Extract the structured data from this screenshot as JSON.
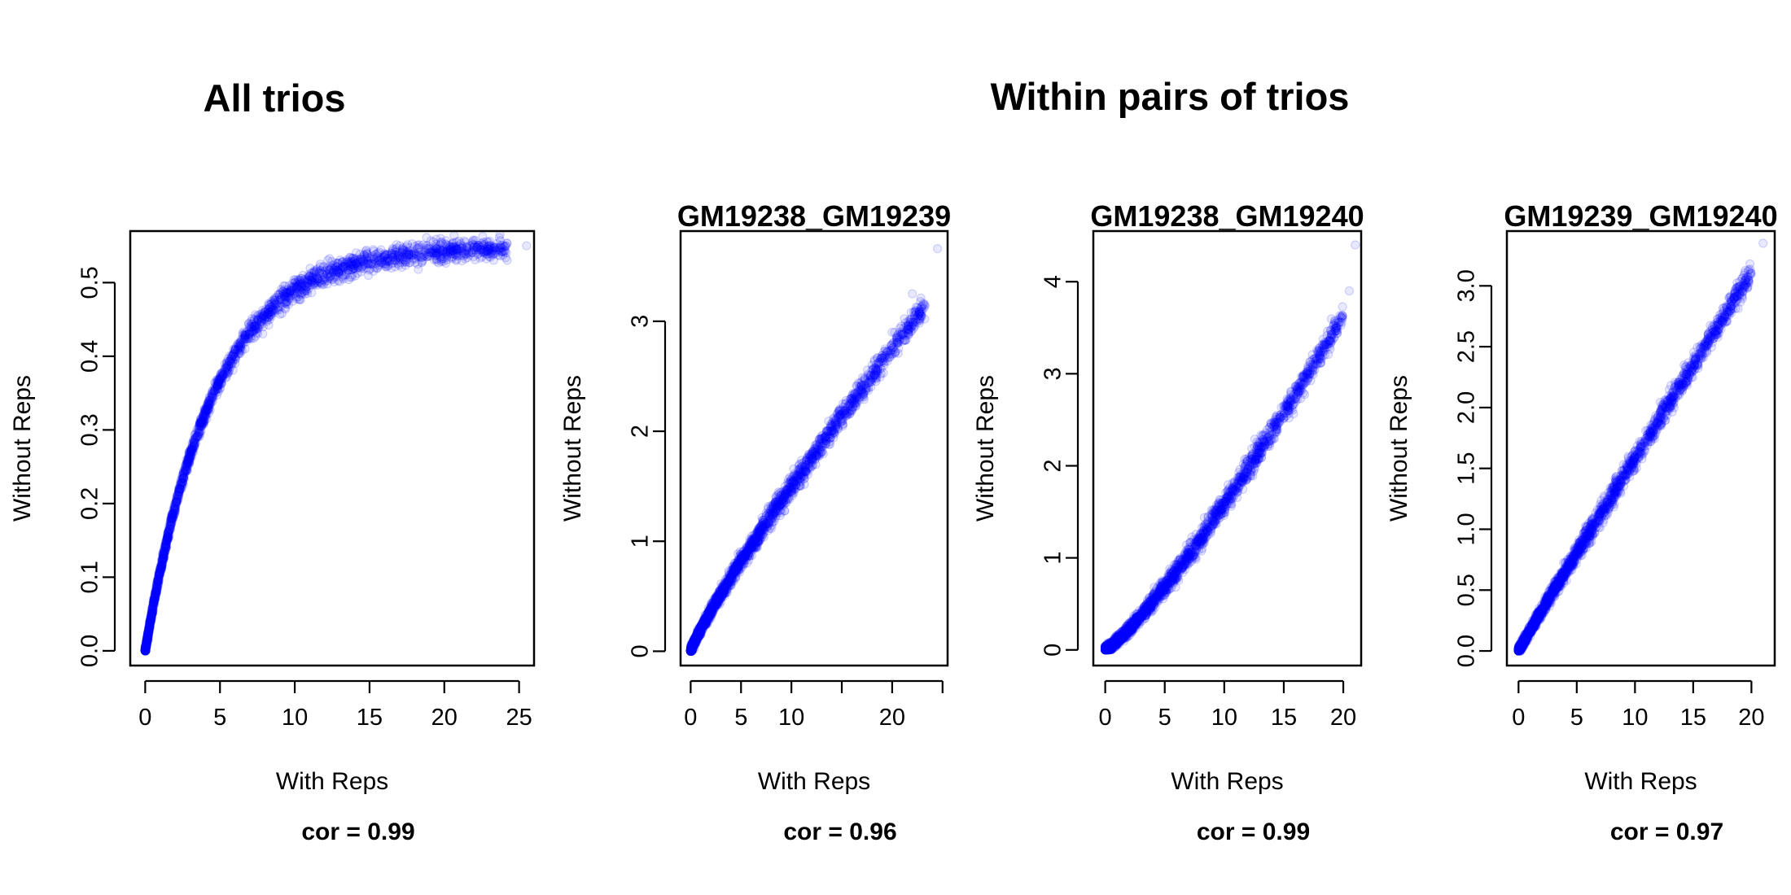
{
  "group_titles": {
    "left": "All trios",
    "right": "Within pairs of trios"
  },
  "chart_data": [
    {
      "type": "scatter",
      "title": "",
      "xlabel": "With Reps",
      "ylabel": "Without Reps",
      "note": "cor = 0.99",
      "xlim": [
        -1,
        26
      ],
      "ylim": [
        -0.02,
        0.57
      ],
      "xticks": [
        0,
        5,
        10,
        15,
        20,
        25
      ],
      "xtick_labels": [
        "0",
        "5",
        "10",
        "15",
        "20",
        "25"
      ],
      "yticks": [
        0.0,
        0.1,
        0.2,
        0.3,
        0.4,
        0.5
      ],
      "ytick_labels": [
        "0.0",
        "0.1",
        "0.2",
        "0.3",
        "0.4",
        "0.5"
      ],
      "point_color": "#0000ff",
      "trend": {
        "kind": "saturating",
        "a": 0.55,
        "k": 0.22
      },
      "x": [
        0,
        0.3,
        0.6,
        1,
        1.5,
        2,
        2.5,
        3,
        3.5,
        4,
        5,
        6,
        7,
        8,
        9,
        10,
        12,
        14,
        16,
        18,
        20,
        22,
        24,
        25.5
      ],
      "y": [
        0.0,
        0.04,
        0.07,
        0.11,
        0.15,
        0.19,
        0.23,
        0.27,
        0.29,
        0.32,
        0.37,
        0.41,
        0.44,
        0.46,
        0.48,
        0.5,
        0.515,
        0.525,
        0.535,
        0.54,
        0.545,
        0.548,
        0.549,
        0.55
      ]
    },
    {
      "type": "scatter",
      "title": "GM19238_GM19239",
      "xlabel": "With Reps",
      "ylabel": "Without Reps",
      "note": "cor = 0.96",
      "xlim": [
        -1,
        25.5
      ],
      "ylim": [
        -0.13,
        3.82
      ],
      "xticks": [
        0,
        5,
        10,
        15,
        20,
        25
      ],
      "xtick_labels": [
        "0",
        "5",
        "10",
        "",
        "20",
        ""
      ],
      "yticks": [
        0,
        1,
        2,
        3
      ],
      "ytick_labels": [
        "0",
        "1",
        "2",
        "3"
      ],
      "point_color": "#0000ff",
      "trend": {
        "kind": "power",
        "a": 0.2,
        "b": 0.875
      },
      "x": [
        0,
        0.5,
        1,
        2,
        3,
        4,
        5,
        6,
        8,
        10,
        12,
        14,
        16,
        18,
        20,
        22,
        24.5
      ],
      "y": [
        0.0,
        0.12,
        0.22,
        0.4,
        0.55,
        0.7,
        0.85,
        1.0,
        1.25,
        1.5,
        1.75,
        2.0,
        2.3,
        2.6,
        2.9,
        3.25,
        3.66
      ]
    },
    {
      "type": "scatter",
      "title": "GM19238_GM19240",
      "xlabel": "With Reps",
      "ylabel": "Without Reps",
      "note": "cor = 0.99",
      "xlim": [
        -1,
        21.5
      ],
      "ylim": [
        -0.17,
        4.55
      ],
      "xticks": [
        0,
        5,
        10,
        15,
        20
      ],
      "xtick_labels": [
        "0",
        "5",
        "10",
        "15",
        "20"
      ],
      "yticks": [
        0,
        1,
        2,
        3,
        4
      ],
      "ytick_labels": [
        "0",
        "1",
        "2",
        "3",
        "4"
      ],
      "point_color": "#0000ff",
      "trend": {
        "kind": "power",
        "a": 0.1,
        "b": 1.2
      },
      "x": [
        0,
        1,
        2,
        3,
        4,
        5,
        6,
        7,
        8,
        9,
        10,
        11,
        12,
        13,
        14,
        15,
        16,
        17,
        18,
        19,
        20.5,
        21
      ],
      "y": [
        0.0,
        0.1,
        0.23,
        0.37,
        0.53,
        0.69,
        0.86,
        1.03,
        1.21,
        1.4,
        1.58,
        1.78,
        1.97,
        2.17,
        2.37,
        2.58,
        2.79,
        3.0,
        3.21,
        3.43,
        3.9,
        4.4
      ]
    },
    {
      "type": "scatter",
      "title": "GM19239_GM19240",
      "xlabel": "With Reps",
      "ylabel": "Without Reps",
      "note": "cor = 0.97",
      "xlim": [
        -1,
        22
      ],
      "ylim": [
        -0.12,
        3.45
      ],
      "xticks": [
        0,
        5,
        10,
        15,
        20
      ],
      "xtick_labels": [
        "0",
        "5",
        "10",
        "15",
        "20"
      ],
      "yticks": [
        0.0,
        0.5,
        1.0,
        1.5,
        2.0,
        2.5,
        3.0
      ],
      "ytick_labels": [
        "0.0",
        "0.5",
        "1.0",
        "1.5",
        "2.0",
        "2.5",
        "3.0"
      ],
      "point_color": "#0000ff",
      "trend": {
        "kind": "power",
        "a": 0.17,
        "b": 0.97
      },
      "x": [
        0,
        1,
        2,
        3,
        4,
        5,
        6,
        7,
        8,
        9,
        10,
        11,
        12,
        13,
        14,
        15,
        16,
        17,
        18,
        19,
        20,
        21
      ],
      "y": [
        0.0,
        0.17,
        0.33,
        0.5,
        0.65,
        0.81,
        0.97,
        1.12,
        1.28,
        1.43,
        1.58,
        1.73,
        1.88,
        2.03,
        2.18,
        2.33,
        2.48,
        2.63,
        2.78,
        2.93,
        3.1,
        3.35
      ]
    }
  ]
}
